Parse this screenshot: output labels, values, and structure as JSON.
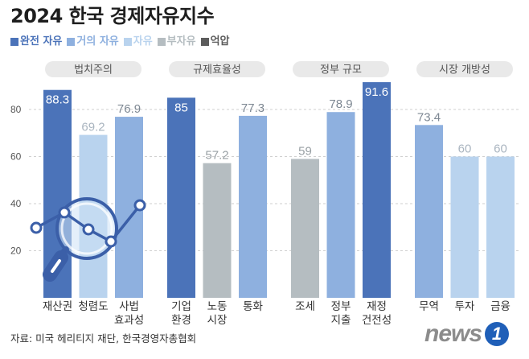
{
  "chart_data": {
    "type": "bar",
    "title": "2024 한국 경제자유지수",
    "legend": [
      {
        "label": "완전 자유",
        "color": "#4b73b9"
      },
      {
        "label": "거의 자유",
        "color": "#8eb0df"
      },
      {
        "label": "자유",
        "color": "#b9d3ee"
      },
      {
        "label": "부자유",
        "color": "#b5bdc1"
      },
      {
        "label": "억압",
        "color": "#5c5c5c"
      }
    ],
    "yticks": [
      20,
      40,
      60,
      80
    ],
    "groups": [
      {
        "name": "법치주의",
        "bars": [
          {
            "label": [
              "재산권"
            ],
            "value": 88.3,
            "level": 0
          },
          {
            "label": [
              "청렴도"
            ],
            "value": 69.2,
            "level": 2
          },
          {
            "label": [
              "사법",
              "효과성"
            ],
            "value": 76.9,
            "level": 1
          }
        ]
      },
      {
        "name": "규제효율성",
        "bars": [
          {
            "label": [
              "기업",
              "환경"
            ],
            "value": 85,
            "level": 0
          },
          {
            "label": [
              "노동",
              "시장"
            ],
            "value": 57.2,
            "level": 3
          },
          {
            "label": [
              "통화"
            ],
            "value": 77.3,
            "level": 1
          }
        ]
      },
      {
        "name": "정부 규모",
        "bars": [
          {
            "label": [
              "조세"
            ],
            "value": 59,
            "level": 3
          },
          {
            "label": [
              "정부",
              "지출"
            ],
            "value": 78.9,
            "level": 1
          },
          {
            "label": [
              "재정",
              "건전성"
            ],
            "value": 91.6,
            "level": 0
          }
        ]
      },
      {
        "name": "시장 개방성",
        "bars": [
          {
            "label": [
              "무역"
            ],
            "value": 73.4,
            "level": 1
          },
          {
            "label": [
              "투자"
            ],
            "value": 60,
            "level": 2
          },
          {
            "label": [
              "금융"
            ],
            "value": 60,
            "level": 2
          }
        ]
      }
    ]
  },
  "source": "자료: 미국 헤리티지 재단, 한국경영자총협회",
  "logo": {
    "word": "news",
    "mark": "1"
  }
}
